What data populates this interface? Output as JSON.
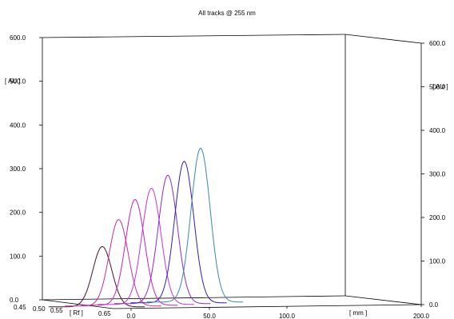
{
  "chart_data": {
    "type": "line",
    "title": "All tracks @ 255 nm",
    "ylabel": "[ AU ]",
    "ylabel_right": "[ AU ]",
    "xlabel": "[ mm ]",
    "zlabel": "[ Rf ]",
    "ylim": [
      0,
      600
    ],
    "xlim": [
      0,
      200
    ],
    "y_ticks": [
      "0.0",
      "100.0",
      "200.0",
      "300.0",
      "400.0",
      "500.0",
      "600.0"
    ],
    "x_ticks": [
      "0.0",
      "50.0",
      "100.0",
      "200.0"
    ],
    "rf_ticks": [
      "0.45",
      "0.50",
      "0.55",
      "0.65"
    ],
    "series": [
      {
        "color": "#4a1030",
        "peak_rf": 0.5,
        "peak_height": 138,
        "sigma": 0.085
      },
      {
        "color": "#c42fa0",
        "peak_rf": 0.5,
        "peak_height": 198,
        "sigma": 0.085
      },
      {
        "color": "#cc1fbf",
        "peak_rf": 0.5,
        "peak_height": 242,
        "sigma": 0.085
      },
      {
        "color": "#c433dd",
        "peak_rf": 0.5,
        "peak_height": 266,
        "sigma": 0.085
      },
      {
        "color": "#8e28cc",
        "peak_rf": 0.5,
        "peak_height": 294,
        "sigma": 0.085
      },
      {
        "color": "#2b1fb8",
        "peak_rf": 0.5,
        "peak_height": 324,
        "sigma": 0.085
      },
      {
        "color": "#3a86b8",
        "peak_rf": 0.5,
        "peak_height": 352,
        "sigma": 0.085
      }
    ]
  }
}
